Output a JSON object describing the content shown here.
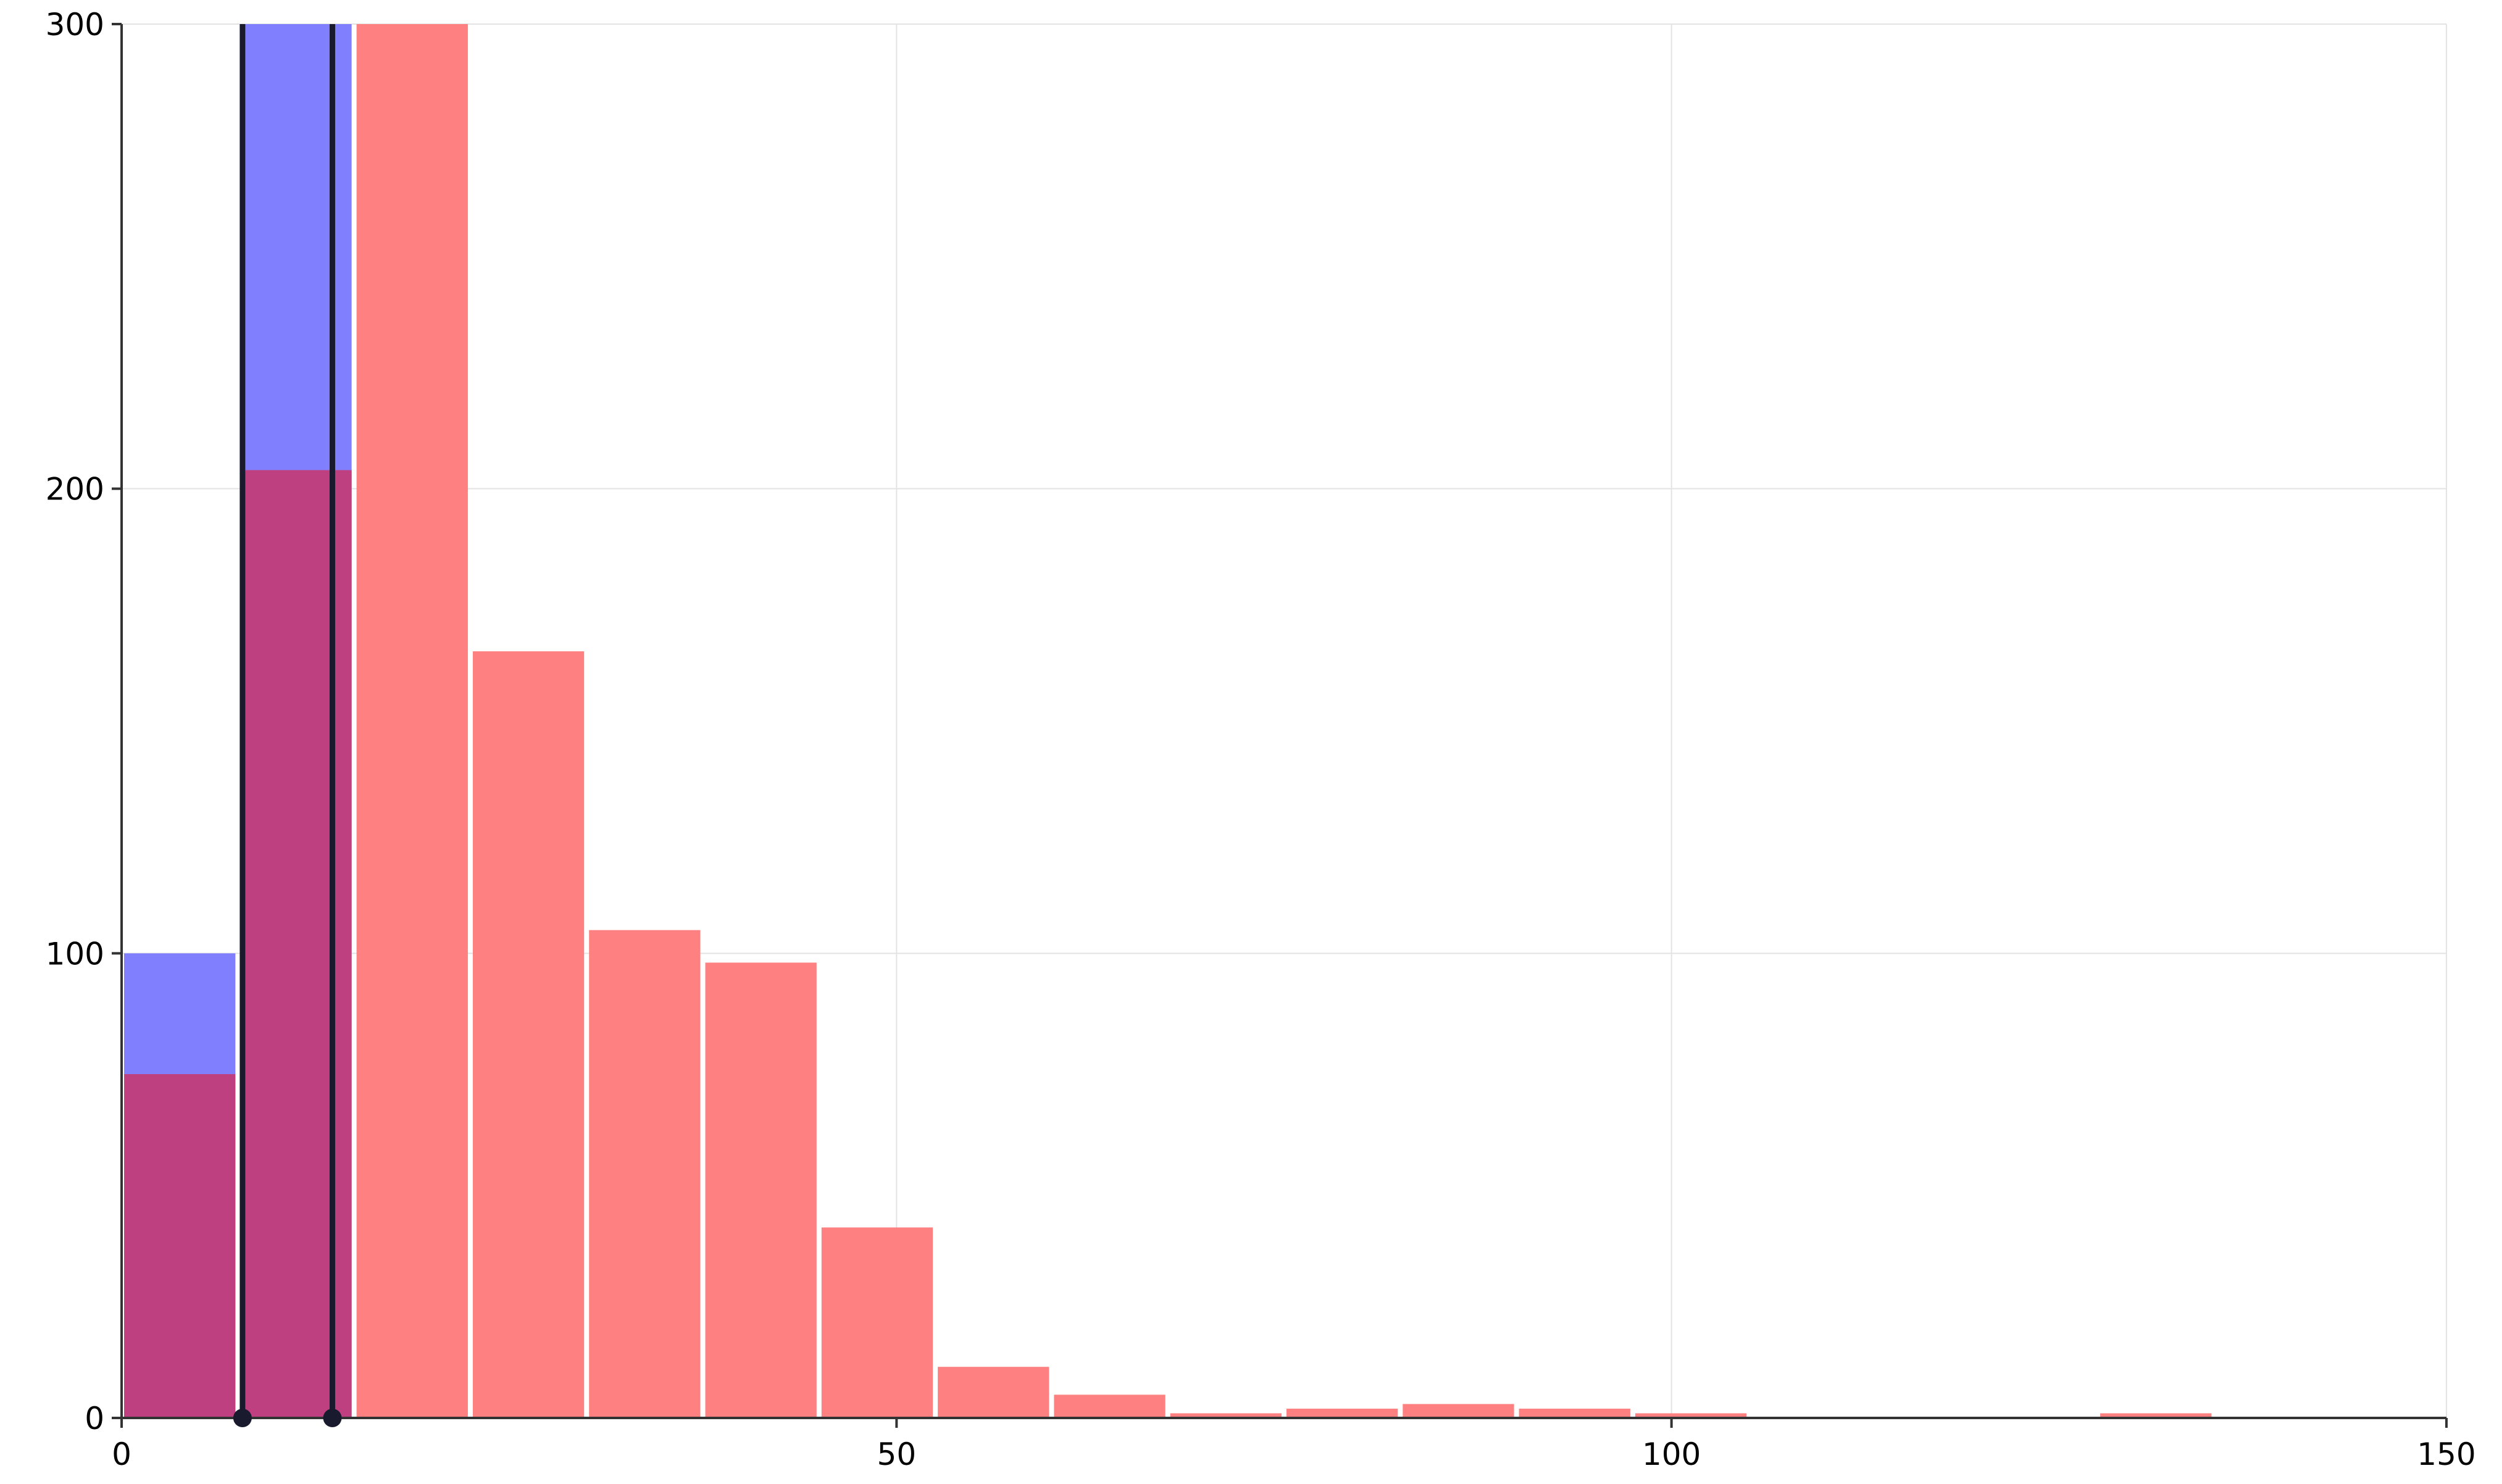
{
  "chart_data": {
    "type": "histogram",
    "title": "",
    "xlabel": "",
    "ylabel": "",
    "xlim": [
      0,
      150
    ],
    "ylim": [
      0,
      300
    ],
    "grid": true,
    "x_ticks": [
      0,
      50,
      100,
      150
    ],
    "y_ticks": [
      0,
      100,
      200,
      300
    ],
    "bin_width": 7.5,
    "series": [
      {
        "color": "#8080ff",
        "bins": [
          {
            "x0": 0,
            "x1": 7.5,
            "count": 100
          },
          {
            "x0": 7.5,
            "x1": 15,
            "count": 300
          }
        ]
      },
      {
        "color": "#ff8080",
        "bins": [
          {
            "x0": 0,
            "x1": 7.5,
            "count": 74
          },
          {
            "x0": 7.5,
            "x1": 15,
            "count": 204
          },
          {
            "x0": 15,
            "x1": 22.5,
            "count": 300
          },
          {
            "x0": 22.5,
            "x1": 30,
            "count": 165
          },
          {
            "x0": 30,
            "x1": 37.5,
            "count": 105
          },
          {
            "x0": 37.5,
            "x1": 45,
            "count": 98
          },
          {
            "x0": 45,
            "x1": 52.5,
            "count": 41
          },
          {
            "x0": 52.5,
            "x1": 60,
            "count": 11
          },
          {
            "x0": 60,
            "x1": 67.5,
            "count": 5
          },
          {
            "x0": 67.5,
            "x1": 75,
            "count": 1
          },
          {
            "x0": 75,
            "x1": 82.5,
            "count": 2
          },
          {
            "x0": 82.5,
            "x1": 90,
            "count": 3
          },
          {
            "x0": 90,
            "x1": 97.5,
            "count": 2
          },
          {
            "x0": 97.5,
            "x1": 105,
            "count": 1
          },
          {
            "x0": 127.5,
            "x1": 135,
            "count": 1
          }
        ]
      }
    ],
    "overlap_color": "#bf4080",
    "vertical_lines": [
      {
        "x": 7.8,
        "color": "#1a1a2e"
      },
      {
        "x": 13.6,
        "color": "#1a1a2e"
      }
    ]
  }
}
